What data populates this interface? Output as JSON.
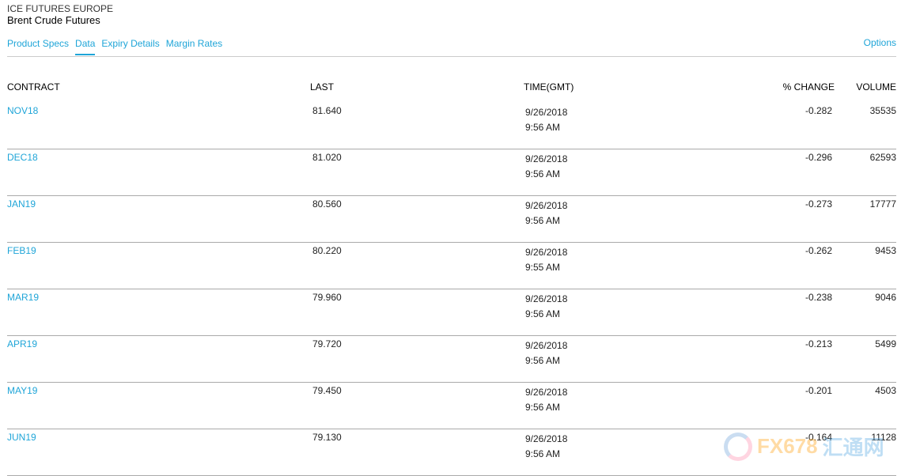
{
  "header": {
    "exchange": "ICE FUTURES EUROPE",
    "product": "Brent Crude Futures"
  },
  "tabs": [
    {
      "label": "Product Specs"
    },
    {
      "label": "Data",
      "active": true
    },
    {
      "label": "Expiry Details"
    },
    {
      "label": "Margin Rates"
    }
  ],
  "options_label": "Options",
  "table": {
    "columns": [
      "CONTRACT",
      "LAST",
      "TIME(GMT)",
      "% CHANGE",
      "VOLUME"
    ],
    "rows": [
      {
        "contract": "NOV18",
        "last": "81.640",
        "date": "9/26/2018",
        "time": "9:56 AM",
        "change": "-0.282",
        "volume": "35535"
      },
      {
        "contract": "DEC18",
        "last": "81.020",
        "date": "9/26/2018",
        "time": "9:56 AM",
        "change": "-0.296",
        "volume": "62593"
      },
      {
        "contract": "JAN19",
        "last": "80.560",
        "date": "9/26/2018",
        "time": "9:56 AM",
        "change": "-0.273",
        "volume": "17777"
      },
      {
        "contract": "FEB19",
        "last": "80.220",
        "date": "9/26/2018",
        "time": "9:55 AM",
        "change": "-0.262",
        "volume": "9453"
      },
      {
        "contract": "MAR19",
        "last": "79.960",
        "date": "9/26/2018",
        "time": "9:56 AM",
        "change": "-0.238",
        "volume": "9046"
      },
      {
        "contract": "APR19",
        "last": "79.720",
        "date": "9/26/2018",
        "time": "9:56 AM",
        "change": "-0.213",
        "volume": "5499"
      },
      {
        "contract": "MAY19",
        "last": "79.450",
        "date": "9/26/2018",
        "time": "9:56 AM",
        "change": "-0.201",
        "volume": "4503"
      },
      {
        "contract": "JUN19",
        "last": "79.130",
        "date": "9/26/2018",
        "time": "9:56 AM",
        "change": "-0.164",
        "volume": "11128"
      }
    ]
  },
  "watermark": {
    "text": "FX678",
    "cn": "汇通网"
  },
  "colors": {
    "link": "#1fa5d8"
  }
}
